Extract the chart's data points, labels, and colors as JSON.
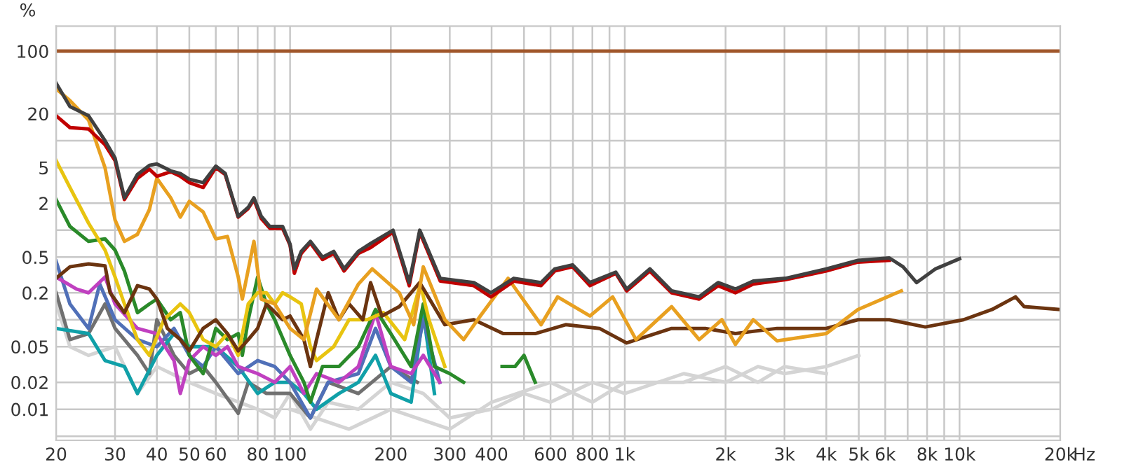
{
  "chart_data": {
    "type": "line",
    "ylabel": "%",
    "xlabel": "Hz",
    "log": "xy",
    "grid": true,
    "marker": "none",
    "line_style": "solid",
    "xlim": [
      20,
      20000
    ],
    "ylim": [
      0.0045,
      190
    ],
    "xticks": [
      20,
      30,
      40,
      50,
      60,
      {
        "value": 70,
        "label": null
      },
      80,
      {
        "value": 90,
        "label": null
      },
      100,
      200,
      300,
      400,
      {
        "value": 500,
        "label": null
      },
      600,
      {
        "value": 700,
        "label": null
      },
      800,
      {
        "value": 900,
        "label": null
      },
      {
        "value": 1000,
        "label": "1k"
      },
      {
        "value": 2000,
        "label": "2k"
      },
      {
        "value": 3000,
        "label": "3k"
      },
      {
        "value": 4000,
        "label": "4k"
      },
      {
        "value": 5000,
        "label": "5k"
      },
      {
        "value": 6000,
        "label": "6k"
      },
      {
        "value": 7000,
        "label": null
      },
      {
        "value": 8000,
        "label": "8k"
      },
      {
        "value": 9000,
        "label": null
      },
      {
        "value": 10000,
        "label": "10k"
      },
      {
        "value": 20000,
        "label": "20k"
      }
    ],
    "yticks": [
      {
        "value": 0.005,
        "label": null
      },
      0.01,
      0.02,
      0.05,
      {
        "value": 0.1,
        "label": null
      },
      0.2,
      0.5,
      {
        "value": 1,
        "label": null
      },
      2,
      5,
      {
        "value": 10,
        "label": null
      },
      20,
      100
    ],
    "series": [
      {
        "color": "#d4d4d4",
        "x": [
          20,
          22,
          25,
          30,
          35,
          40,
          50,
          60,
          80,
          90,
          100,
          115,
          130,
          160,
          200,
          250,
          300,
          400,
          500,
          600,
          800,
          1000,
          1500,
          2000,
          2500,
          3000,
          4000,
          5000
        ],
        "values": [
          0.15,
          0.05,
          0.04,
          0.05,
          0.015,
          0.03,
          0.02,
          0.015,
          0.01,
          0.008,
          0.015,
          0.006,
          0.012,
          0.01,
          0.02,
          0.015,
          0.008,
          0.01,
          0.015,
          0.012,
          0.02,
          0.015,
          0.025,
          0.02,
          0.03,
          0.025,
          0.03,
          0.04
        ]
      },
      {
        "color": "#d4d4d4",
        "x": [
          100,
          150,
          200,
          300,
          400,
          600,
          800,
          1000,
          1500,
          2000,
          2500,
          3000,
          4000
        ],
        "values": [
          0.01,
          0.006,
          0.01,
          0.006,
          0.012,
          0.02,
          0.012,
          0.02,
          0.02,
          0.03,
          0.02,
          0.03,
          0.025
        ]
      },
      {
        "color": "#707070",
        "x": [
          20,
          22,
          25,
          28,
          30,
          35,
          38,
          40,
          45,
          50,
          55,
          60,
          70,
          75,
          85,
          100,
          115,
          130,
          160,
          200,
          240
        ],
        "values": [
          0.2,
          0.06,
          0.07,
          0.15,
          0.08,
          0.04,
          0.025,
          0.1,
          0.04,
          0.025,
          0.03,
          0.02,
          0.009,
          0.02,
          0.015,
          0.015,
          0.008,
          0.02,
          0.015,
          0.03,
          0.02
        ]
      },
      {
        "color": "#10a0a8",
        "x": [
          20,
          25,
          28,
          32,
          35,
          40,
          45,
          50,
          60,
          70,
          80,
          90,
          100,
          110,
          120,
          140,
          160,
          180,
          200,
          230,
          250,
          270
        ],
        "values": [
          0.08,
          0.07,
          0.035,
          0.03,
          0.015,
          0.04,
          0.07,
          0.05,
          0.05,
          0.03,
          0.015,
          0.02,
          0.02,
          0.015,
          0.01,
          0.015,
          0.02,
          0.04,
          0.015,
          0.012,
          0.12,
          0.015
        ]
      },
      {
        "color": "#5070b8",
        "x": [
          20,
          22,
          25,
          27,
          30,
          35,
          40,
          45,
          50,
          55,
          60,
          70,
          80,
          90,
          100,
          115,
          130,
          160,
          180,
          200,
          230,
          250,
          280
        ],
        "values": [
          0.45,
          0.15,
          0.08,
          0.25,
          0.1,
          0.06,
          0.05,
          0.08,
          0.04,
          0.03,
          0.05,
          0.025,
          0.035,
          0.03,
          0.02,
          0.008,
          0.02,
          0.025,
          0.08,
          0.03,
          0.02,
          0.1,
          0.02
        ]
      },
      {
        "color": "#c040c0",
        "x": [
          20,
          23,
          25,
          28,
          30,
          35,
          40,
          45,
          47,
          50,
          55,
          60,
          65,
          70,
          80,
          90,
          100,
          110,
          120,
          140,
          160,
          180,
          200,
          230,
          250,
          280
        ],
        "values": [
          0.3,
          0.22,
          0.2,
          0.3,
          0.15,
          0.08,
          0.07,
          0.035,
          0.015,
          0.035,
          0.05,
          0.04,
          0.05,
          0.03,
          0.025,
          0.02,
          0.03,
          0.015,
          0.025,
          0.02,
          0.03,
          0.12,
          0.03,
          0.025,
          0.04,
          0.02
        ]
      },
      {
        "color": "#2a8a2a",
        "x": [
          20,
          22,
          25,
          28,
          30,
          32,
          35,
          38,
          40,
          44,
          47,
          50,
          55,
          60,
          65,
          70,
          72,
          75,
          80,
          85,
          90,
          100,
          110,
          115,
          125,
          140,
          160,
          180,
          200,
          230,
          250,
          270,
          300,
          330,
          380,
          430,
          470,
          500,
          540
        ],
        "values": [
          2.2,
          1.1,
          0.75,
          0.8,
          0.6,
          0.35,
          0.12,
          0.15,
          0.17,
          0.1,
          0.12,
          0.04,
          0.025,
          0.08,
          0.06,
          0.07,
          0.04,
          0.1,
          0.3,
          0.15,
          0.1,
          0.04,
          0.02,
          0.012,
          0.03,
          0.03,
          0.05,
          0.13,
          0.07,
          0.03,
          0.15,
          0.03,
          0.025,
          0.02,
          null,
          0.03,
          0.03,
          0.04,
          0.02
        ]
      },
      {
        "color": "#e8c410",
        "x": [
          20,
          22,
          25,
          28,
          30,
          32,
          35,
          38,
          42,
          47,
          50,
          55,
          60,
          65,
          70,
          75,
          80,
          85,
          90,
          95,
          100,
          108,
          115,
          120,
          135,
          150,
          170,
          190,
          220,
          245,
          260,
          290
        ],
        "values": [
          6,
          3,
          1.2,
          0.6,
          0.3,
          0.15,
          0.06,
          0.04,
          0.1,
          0.15,
          0.12,
          0.06,
          0.05,
          0.07,
          0.04,
          0.15,
          0.2,
          0.2,
          0.15,
          0.2,
          0.18,
          0.15,
          0.05,
          0.035,
          0.05,
          0.1,
          0.1,
          0.12,
          0.06,
          0.25,
          0.1,
          0.03
        ]
      },
      {
        "color": "#6b3410",
        "x": [
          20,
          22,
          25,
          28,
          29,
          32,
          35,
          38,
          40,
          43,
          47,
          50,
          55,
          60,
          65,
          70,
          75,
          80,
          85,
          95,
          100,
          110,
          115,
          120,
          130,
          140,
          150,
          165,
          174,
          188,
          212,
          244,
          290,
          354,
          433,
          540,
          666,
          840,
          1013,
          1380,
          1740,
          2140,
          2850,
          4000,
          4970,
          6170,
          7900,
          10280,
          12500,
          14700,
          15600,
          20000
        ],
        "values": [
          0.29,
          0.39,
          0.42,
          0.4,
          0.2,
          0.12,
          0.24,
          0.22,
          0.17,
          0.08,
          0.06,
          0.045,
          0.08,
          0.1,
          0.07,
          0.045,
          0.06,
          0.08,
          0.15,
          0.1,
          0.11,
          0.06,
          0.03,
          0.06,
          0.2,
          0.1,
          0.15,
          0.1,
          0.26,
          0.11,
          0.14,
          0.26,
          0.088,
          0.1,
          0.07,
          0.07,
          0.088,
          0.08,
          0.055,
          0.08,
          0.08,
          0.07,
          0.08,
          0.08,
          0.1,
          0.1,
          0.083,
          0.1,
          0.13,
          0.18,
          0.14,
          0.13
        ]
      },
      {
        "color": "#e8a020",
        "x": [
          20,
          22,
          25,
          28,
          30,
          32,
          35,
          38,
          40,
          44,
          47,
          50,
          55,
          60,
          65,
          70,
          72,
          78,
          82,
          90,
          100,
          110,
          120,
          140,
          160,
          176,
          212,
          234,
          250,
          290,
          330,
          370,
          448,
          562,
          630,
          787,
          920,
          1080,
          1380,
          1668,
          1950,
          2140,
          2420,
          2850,
          4000,
          4970,
          6700
        ],
        "values": [
          38,
          28,
          17,
          5,
          1.3,
          0.75,
          0.9,
          1.7,
          3.8,
          2.3,
          1.4,
          2.1,
          1.6,
          0.8,
          0.85,
          0.3,
          0.17,
          0.75,
          0.17,
          0.15,
          0.08,
          0.06,
          0.22,
          0.1,
          0.25,
          0.37,
          0.2,
          0.088,
          0.39,
          0.1,
          0.06,
          0.11,
          0.29,
          0.088,
          0.18,
          0.11,
          0.18,
          0.06,
          0.14,
          0.06,
          0.1,
          0.053,
          0.1,
          0.058,
          0.07,
          0.13,
          0.21
        ]
      },
      {
        "color": "#c00000",
        "x": [
          20,
          22,
          25,
          28,
          30,
          32,
          35,
          38,
          40,
          44,
          47,
          50,
          55,
          60,
          64,
          70,
          75,
          78,
          82,
          87,
          95,
          100,
          103,
          108,
          115,
          125,
          135,
          145,
          160,
          174,
          203,
          227,
          244,
          281,
          354,
          398,
          466,
          562,
          618,
          698,
          787,
          940,
          1013,
          1188,
          1380,
          1668,
          1900,
          2140,
          2420,
          3020,
          4000,
          4970,
          6170
        ],
        "values": [
          19,
          14,
          13.5,
          9,
          6,
          2.2,
          3.8,
          4.8,
          4.0,
          4.5,
          4.0,
          3.4,
          3.0,
          5.0,
          4.2,
          1.4,
          1.75,
          2.2,
          1.35,
          1.05,
          1.05,
          0.68,
          0.33,
          0.55,
          0.72,
          0.47,
          0.55,
          0.35,
          0.55,
          0.64,
          0.95,
          0.24,
          0.95,
          0.27,
          0.24,
          0.18,
          0.27,
          0.24,
          0.35,
          0.39,
          0.24,
          0.33,
          0.21,
          0.35,
          0.2,
          0.17,
          0.24,
          0.2,
          0.25,
          0.28,
          0.35,
          0.44,
          0.46
        ]
      },
      {
        "color": "#404040",
        "x": [
          20,
          22,
          25,
          28,
          30,
          32,
          35,
          38,
          40,
          44,
          47,
          50,
          55,
          60,
          64,
          70,
          75,
          78,
          82,
          87,
          95,
          100,
          103,
          108,
          115,
          125,
          135,
          145,
          160,
          174,
          203,
          227,
          244,
          281,
          354,
          398,
          466,
          562,
          618,
          698,
          787,
          940,
          1013,
          1188,
          1380,
          1668,
          1900,
          2140,
          2420,
          3020,
          4000,
          4970,
          6170,
          6780,
          7440,
          8480,
          10000
        ],
        "values": [
          44,
          24,
          19,
          10,
          6.4,
          2.3,
          4.2,
          5.3,
          5.5,
          4.6,
          4.3,
          3.7,
          3.4,
          5.2,
          4.3,
          1.43,
          1.8,
          2.3,
          1.43,
          1.1,
          1.1,
          0.7,
          0.37,
          0.58,
          0.75,
          0.5,
          0.58,
          0.37,
          0.58,
          0.71,
          1.0,
          0.26,
          1.0,
          0.29,
          0.26,
          0.2,
          0.29,
          0.26,
          0.37,
          0.41,
          0.26,
          0.34,
          0.22,
          0.37,
          0.21,
          0.18,
          0.26,
          0.22,
          0.27,
          0.29,
          0.37,
          0.46,
          0.49,
          0.39,
          0.26,
          0.37,
          0.48
        ]
      },
      {
        "color": "#a0562a",
        "x": [
          20,
          20000
        ],
        "values": [
          100,
          100
        ]
      }
    ]
  }
}
